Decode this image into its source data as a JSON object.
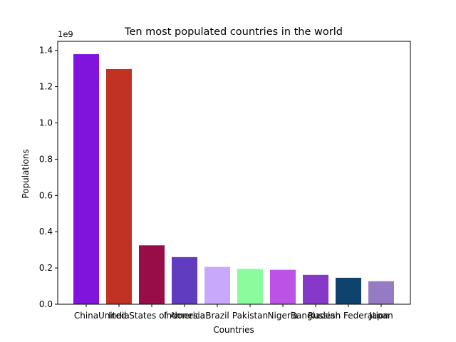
{
  "chart_data": {
    "type": "bar",
    "title": "Ten most populated countries in the world",
    "xlabel": "Countries",
    "ylabel": "Populations",
    "y_offset_label": "1e9",
    "ylim": [
      0,
      1.45
    ],
    "yticks": [
      "0.0",
      "0.2",
      "0.4",
      "0.6",
      "0.8",
      "1.0",
      "1.2",
      "1.4"
    ],
    "ytick_values": [
      0.0,
      0.2,
      0.4,
      0.6,
      0.8,
      1.0,
      1.2,
      1.4
    ],
    "categories": [
      "China",
      "India",
      "United States of America",
      "Indonesia",
      "Brazil",
      "Pakistan",
      "Nigeria",
      "Bangladesh",
      "Russian Federation",
      "Japan"
    ],
    "values": [
      1.379,
      1.297,
      0.325,
      0.26,
      0.206,
      0.195,
      0.19,
      0.162,
      0.146,
      0.127
    ],
    "values_unit_multiplier": 1000000000,
    "colors": [
      "#8013dc",
      "#c23222",
      "#980c47",
      "#603dc0",
      "#c8a8fb",
      "#8afc9e",
      "#bb53e6",
      "#8638c8",
      "#10426e",
      "#957ac4"
    ],
    "grid": false,
    "legend": "none"
  }
}
